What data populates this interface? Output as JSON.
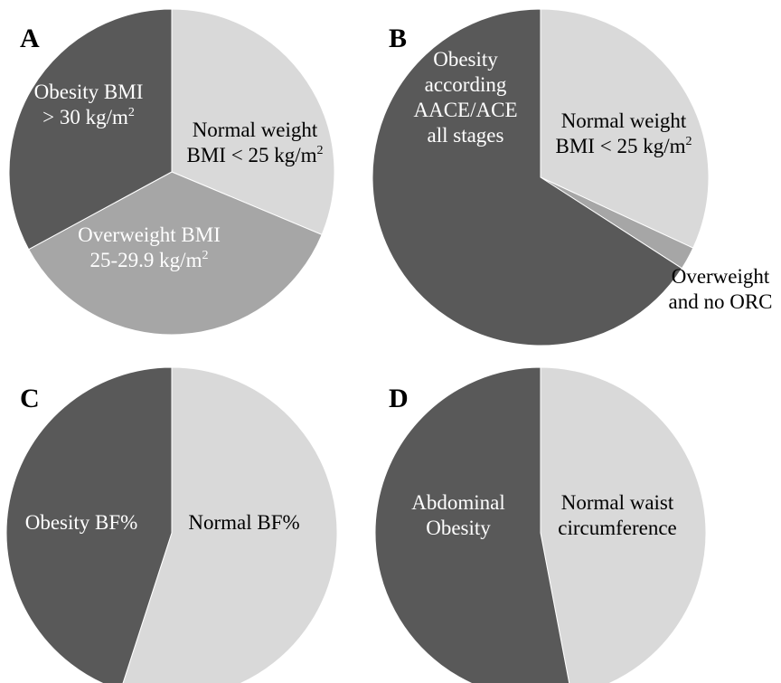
{
  "colors": {
    "light": "#d9d9d9",
    "medium": "#a6a6a6",
    "dark": "#595959",
    "text_on_dark": "#ffffff",
    "text_on_light": "#000000"
  },
  "chart_data": [
    {
      "type": "pie",
      "panel": "A",
      "slices": [
        {
          "label_lines": [
            "Normal weight",
            "BMI < 25 kg/m|2"
          ],
          "value": 0.313,
          "color": "light"
        },
        {
          "label_lines": [
            "Overweight BMI",
            "25-29.9 kg/m|2"
          ],
          "value": 0.358,
          "color": "medium"
        },
        {
          "label_lines": [
            "Obesity BMI",
            "> 30 kg/m|2"
          ],
          "value": 0.329,
          "color": "dark"
        }
      ]
    },
    {
      "type": "pie",
      "panel": "B",
      "slices": [
        {
          "label_lines": [
            "Normal weight",
            "BMI < 25 kg/m|2"
          ],
          "value": 0.319,
          "color": "light"
        },
        {
          "label_lines": [
            "Overweight",
            "and no ORC"
          ],
          "value": 0.022,
          "color": "medium"
        },
        {
          "label_lines": [
            "Obesity",
            "according",
            "AACE/ACE",
            "all stages"
          ],
          "value": 0.659,
          "color": "dark"
        }
      ]
    },
    {
      "type": "pie",
      "panel": "C",
      "slices": [
        {
          "label_lines": [
            "Normal BF%"
          ],
          "value": 0.55,
          "color": "light"
        },
        {
          "label_lines": [
            "Obesity BF%"
          ],
          "value": 0.45,
          "color": "dark"
        }
      ]
    },
    {
      "type": "pie",
      "panel": "D",
      "slices": [
        {
          "label_lines": [
            "Normal waist",
            "circumference"
          ],
          "value": 0.47,
          "color": "light"
        },
        {
          "label_lines": [
            "Abdominal",
            "Obesity"
          ],
          "value": 0.53,
          "color": "dark"
        }
      ]
    }
  ]
}
